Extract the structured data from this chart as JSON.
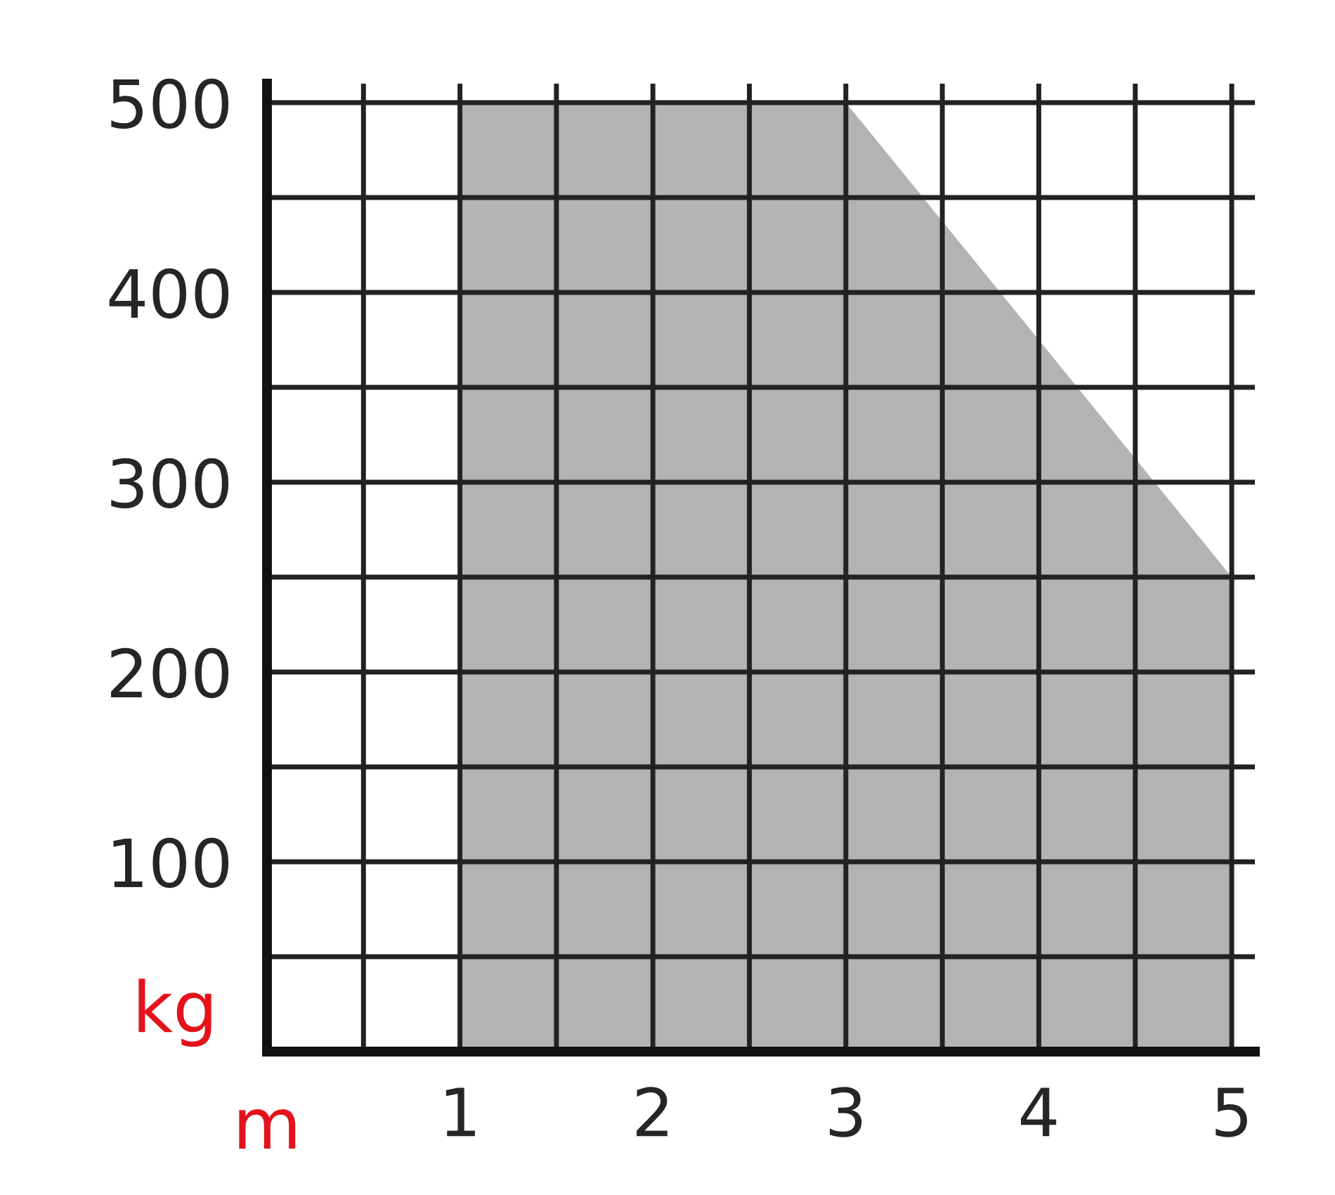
{
  "chart_data": {
    "type": "area",
    "xlabel": "m",
    "ylabel": "kg",
    "x": [
      1,
      3,
      5
    ],
    "series": [
      {
        "color": "#b3b3b3",
        "values": [
          500,
          500,
          250
        ]
      }
    ],
    "xlim": [
      0,
      5.12
    ],
    "ylim": [
      0,
      510
    ],
    "xticks": [
      {
        "value": 0,
        "label": null
      },
      {
        "value": 0.5,
        "label": null
      },
      1,
      {
        "value": 1.5,
        "label": null
      },
      2,
      {
        "value": 2.5,
        "label": null
      },
      3,
      {
        "value": 3.5,
        "label": null
      },
      4,
      {
        "value": 4.5,
        "label": null
      },
      5
    ],
    "yticks": [
      {
        "value": 0,
        "label": null
      },
      {
        "value": 50,
        "label": null
      },
      100,
      {
        "value": 150,
        "label": null
      },
      200,
      {
        "value": 250,
        "label": null
      },
      300,
      {
        "value": 350,
        "label": null
      },
      400,
      {
        "value": 450,
        "label": null
      },
      500
    ],
    "grid": true
  }
}
